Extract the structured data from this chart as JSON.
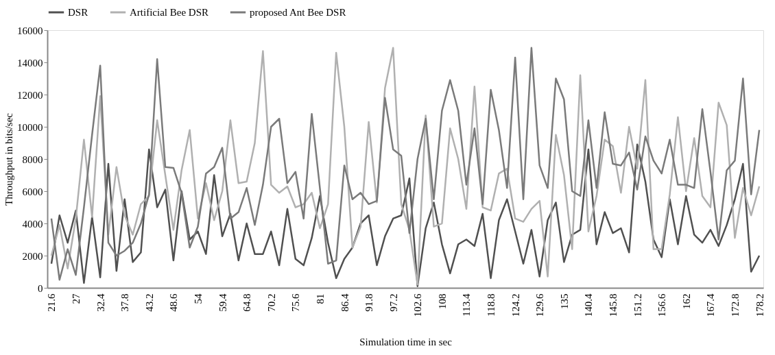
{
  "chart_data": {
    "type": "line",
    "xlabel": "Simulation time in sec",
    "ylabel": "Throughput in bits/sec",
    "categories": [
      "21.6",
      null,
      null,
      "27",
      null,
      null,
      "32.4",
      null,
      null,
      "37.8",
      null,
      null,
      "43.2",
      null,
      null,
      "48.6",
      null,
      null,
      "54",
      null,
      null,
      "59.4",
      null,
      null,
      "64.8",
      null,
      null,
      "70.2",
      null,
      null,
      "75.6",
      null,
      null,
      "81",
      null,
      null,
      "86.4",
      null,
      null,
      "91.8",
      null,
      null,
      "97.2",
      null,
      null,
      "102.6",
      null,
      null,
      "108",
      null,
      null,
      "113.4",
      null,
      null,
      "118.8",
      null,
      null,
      "124.2",
      null,
      null,
      "129.6",
      null,
      null,
      "135",
      null,
      null,
      "140.4",
      null,
      null,
      "145.8",
      null,
      null,
      "151.2",
      null,
      null,
      "156.6",
      null,
      null,
      "162",
      null,
      null,
      "167.4",
      null,
      null,
      "172.8",
      null,
      null,
      "178.2"
    ],
    "series": [
      {
        "name": "DSR",
        "color": "#505050",
        "values": [
          1500,
          4500,
          2800,
          4800,
          300,
          4400,
          650,
          7700,
          1050,
          5500,
          1600,
          2200,
          8600,
          5000,
          6100,
          1700,
          6000,
          3000,
          3500,
          2100,
          7000,
          3200,
          4600,
          1700,
          4000,
          2100,
          2100,
          3500,
          1400,
          4900,
          1800,
          1400,
          3100,
          5700,
          2800,
          600,
          1800,
          2500,
          4000,
          4500,
          1400,
          3200,
          4300,
          4500,
          6800,
          100,
          3700,
          5300,
          2700,
          900,
          2700,
          3000,
          2600,
          4600,
          600,
          4200,
          5500,
          3500,
          1500,
          3600,
          700,
          4200,
          5300,
          1600,
          3300,
          3600,
          8600,
          2700,
          4700,
          3400,
          3700,
          2200,
          8900,
          6600,
          3000,
          1900,
          5500,
          2700,
          5700,
          3300,
          2800,
          3600,
          2600,
          3900,
          5500,
          7700,
          1000,
          2000
        ]
      },
      {
        "name": "Artificial Bee DSR",
        "color": "#b0b0b0",
        "values": [
          2000,
          3900,
          1200,
          4300,
          9200,
          4400,
          11900,
          3300,
          7500,
          4500,
          3300,
          5200,
          5700,
          10400,
          7000,
          3600,
          7300,
          9800,
          4300,
          6500,
          4200,
          6000,
          10400,
          6500,
          6600,
          9000,
          14700,
          6400,
          5900,
          6300,
          5000,
          5200,
          5900,
          3700,
          5200,
          14600,
          10000,
          2500,
          3800,
          10300,
          5300,
          12400,
          14900,
          5200,
          3600,
          200,
          10700,
          3800,
          4000,
          9900,
          8000,
          4900,
          12500,
          5000,
          4800,
          7100,
          7400,
          4300,
          4100,
          4900,
          5400,
          700,
          9500,
          7000,
          2400,
          13200,
          3500,
          5700,
          9200,
          8800,
          5900,
          10000,
          7400,
          12900,
          2400,
          2400,
          5800,
          10600,
          6000,
          9300,
          5700,
          5000,
          11500,
          10100,
          3100,
          6200,
          4500,
          6300
        ]
      },
      {
        "name": "proposed Ant Bee DSR",
        "color": "#7a7a7a",
        "values": [
          4300,
          500,
          2400,
          800,
          5000,
          9500,
          13800,
          2800,
          2000,
          2300,
          2800,
          4000,
          5800,
          14200,
          7500,
          7450,
          5900,
          2500,
          3800,
          7100,
          7500,
          8700,
          4300,
          4700,
          6200,
          3900,
          6400,
          10000,
          10500,
          6500,
          7200,
          4300,
          10800,
          6200,
          1500,
          1700,
          7600,
          5500,
          5900,
          5200,
          5400,
          11800,
          8600,
          8200,
          3400,
          8000,
          10500,
          5500,
          11000,
          12900,
          11000,
          6400,
          9900,
          5200,
          12300,
          9800,
          6200,
          14300,
          5500,
          14900,
          7600,
          6200,
          13000,
          11700,
          6000,
          5700,
          10400,
          6200,
          10900,
          7700,
          7600,
          8400,
          6100,
          9400,
          7900,
          7100,
          9200,
          6400,
          6400,
          6200,
          11100,
          7200,
          3000,
          7300,
          7900,
          13000,
          5800,
          9800
        ]
      }
    ],
    "ylim": [
      0,
      16000
    ],
    "yticks": [
      0,
      2000,
      4000,
      6000,
      8000,
      10000,
      12000,
      14000,
      16000
    ],
    "grid": false,
    "legend": "top",
    "marker": "none",
    "line_style": "solid"
  }
}
